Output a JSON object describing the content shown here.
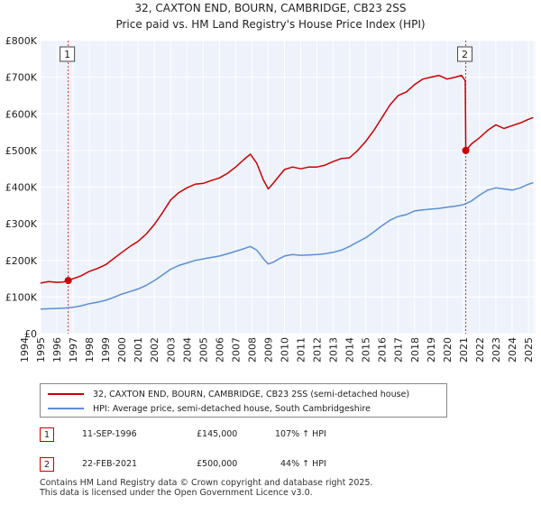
{
  "colors": {
    "price_line": "#cc0000",
    "hpi_line": "#5b8fd4",
    "plot_bg": "#eef2fb",
    "grid": "#ffffff",
    "sale_marker": "#cc0000"
  },
  "chart_data": {
    "type": "line",
    "title": "32, CAXTON END, BOURN, CAMBRIDGE, CB23 2SS",
    "subtitle": "Price paid vs. HM Land Registry's House Price Index (HPI)",
    "ylim": [
      0,
      800000
    ],
    "xlim": [
      1995,
      2025.5
    ],
    "y_ticks": [
      {
        "value": 0,
        "label": "£0"
      },
      {
        "value": 100000,
        "label": "£100K"
      },
      {
        "value": 200000,
        "label": "£200K"
      },
      {
        "value": 300000,
        "label": "£300K"
      },
      {
        "value": 400000,
        "label": "£400K"
      },
      {
        "value": 500000,
        "label": "£500K"
      },
      {
        "value": 600000,
        "label": "£600K"
      },
      {
        "value": 700000,
        "label": "£700K"
      },
      {
        "value": 800000,
        "label": "£800K"
      }
    ],
    "x_ticks": [
      "1994",
      "1995",
      "1996",
      "1997",
      "1998",
      "1999",
      "2000",
      "2001",
      "2002",
      "2003",
      "2004",
      "2005",
      "2006",
      "2007",
      "2008",
      "2009",
      "2010",
      "2011",
      "2012",
      "2013",
      "2014",
      "2015",
      "2016",
      "2017",
      "2018",
      "2019",
      "2020",
      "2021",
      "2022",
      "2023",
      "2024",
      "2025"
    ],
    "series": [
      {
        "name": "32, CAXTON END, BOURN, CAMBRIDGE, CB23 2SS (semi-detached house)",
        "x": [
          1995.0,
          1995.5,
          1996.0,
          1996.4,
          1996.7,
          1997.0,
          1997.5,
          1998.0,
          1998.5,
          1999.0,
          1999.5,
          2000.0,
          2000.5,
          2001.0,
          2001.5,
          2002.0,
          2002.5,
          2003.0,
          2003.5,
          2004.0,
          2004.5,
          2005.0,
          2005.5,
          2006.0,
          2006.5,
          2007.0,
          2007.5,
          2007.9,
          2008.3,
          2008.7,
          2009.0,
          2009.3,
          2009.7,
          2010.0,
          2010.5,
          2011.0,
          2011.5,
          2012.0,
          2012.5,
          2013.0,
          2013.5,
          2014.0,
          2014.5,
          2015.0,
          2015.5,
          2016.0,
          2016.5,
          2017.0,
          2017.5,
          2018.0,
          2018.5,
          2019.0,
          2019.5,
          2020.0,
          2020.5,
          2020.9,
          2021.12,
          2021.15,
          2021.5,
          2022.0,
          2022.5,
          2023.0,
          2023.5,
          2024.0,
          2024.5,
          2025.0,
          2025.3
        ],
        "y": [
          138000,
          142000,
          140000,
          141000,
          145000,
          150000,
          158000,
          170000,
          178000,
          188000,
          205000,
          222000,
          238000,
          252000,
          272000,
          298000,
          330000,
          365000,
          385000,
          398000,
          408000,
          410000,
          418000,
          425000,
          438000,
          455000,
          475000,
          490000,
          465000,
          420000,
          395000,
          410000,
          432000,
          448000,
          455000,
          450000,
          455000,
          455000,
          460000,
          470000,
          478000,
          480000,
          500000,
          525000,
          555000,
          590000,
          625000,
          650000,
          660000,
          680000,
          695000,
          700000,
          705000,
          695000,
          700000,
          705000,
          690000,
          500000,
          518000,
          535000,
          555000,
          570000,
          560000,
          568000,
          575000,
          585000,
          590000
        ]
      },
      {
        "name": "HPI: Average price, semi-detached house, South Cambridgeshire",
        "x": [
          1995.0,
          1995.5,
          1996.0,
          1996.5,
          1997.0,
          1997.5,
          1998.0,
          1998.5,
          1999.0,
          1999.5,
          2000.0,
          2000.5,
          2001.0,
          2001.5,
          2002.0,
          2002.5,
          2003.0,
          2003.5,
          2004.0,
          2004.5,
          2005.0,
          2005.5,
          2006.0,
          2006.5,
          2007.0,
          2007.5,
          2007.9,
          2008.3,
          2008.7,
          2009.0,
          2009.3,
          2009.7,
          2010.0,
          2010.5,
          2011.0,
          2011.5,
          2012.0,
          2012.5,
          2013.0,
          2013.5,
          2014.0,
          2014.5,
          2015.0,
          2015.5,
          2016.0,
          2016.5,
          2017.0,
          2017.5,
          2018.0,
          2018.5,
          2019.0,
          2019.5,
          2020.0,
          2020.5,
          2021.0,
          2021.5,
          2022.0,
          2022.5,
          2023.0,
          2023.5,
          2024.0,
          2024.5,
          2025.0,
          2025.3
        ],
        "y": [
          67000,
          68000,
          69000,
          70000,
          72000,
          76000,
          82000,
          86000,
          91000,
          99000,
          108000,
          115000,
          122000,
          132000,
          145000,
          160000,
          176000,
          186000,
          193000,
          200000,
          204000,
          208000,
          212000,
          218000,
          225000,
          232000,
          238000,
          228000,
          205000,
          190000,
          195000,
          205000,
          212000,
          216000,
          214000,
          215000,
          216000,
          218000,
          222000,
          228000,
          238000,
          250000,
          262000,
          278000,
          295000,
          310000,
          320000,
          325000,
          335000,
          338000,
          340000,
          342000,
          345000,
          348000,
          352000,
          362000,
          378000,
          392000,
          398000,
          395000,
          392000,
          398000,
          408000,
          412000
        ]
      }
    ],
    "sales": [
      {
        "id": "1",
        "x": 1996.7,
        "price": 145000
      },
      {
        "id": "2",
        "x": 2021.15,
        "price": 500000
      }
    ]
  },
  "legend": {
    "price": "32, CAXTON END, BOURN, CAMBRIDGE, CB23 2SS (semi-detached house)",
    "hpi": "HPI: Average price, semi-detached house, South Cambridgeshire"
  },
  "transactions": [
    {
      "id": "1",
      "date": "11-SEP-1996",
      "price": "£145,000",
      "hpi": "107% ↑ HPI"
    },
    {
      "id": "2",
      "date": "22-FEB-2021",
      "price": "£500,000",
      "hpi": "44% ↑ HPI"
    }
  ],
  "footer": {
    "line1": "Contains HM Land Registry data © Crown copyright and database right 2025.",
    "line2": "This data is licensed under the Open Government Licence v3.0."
  }
}
